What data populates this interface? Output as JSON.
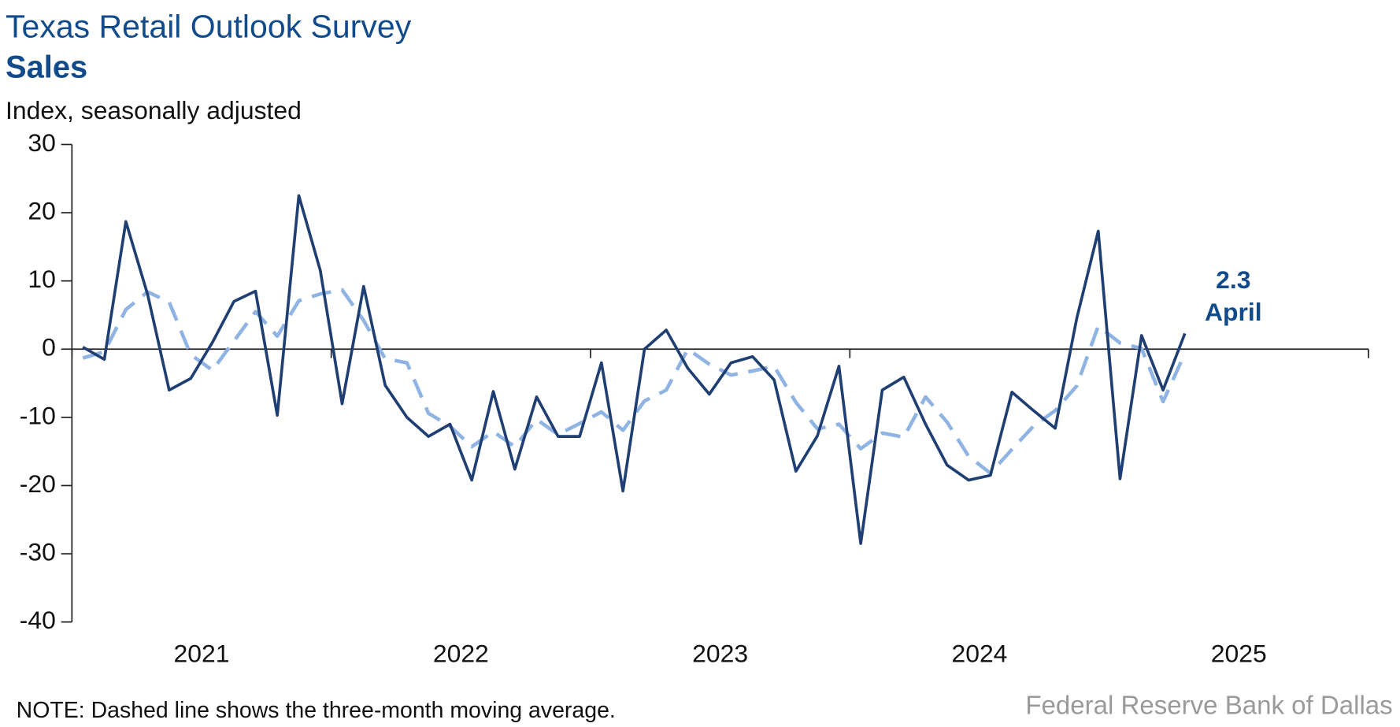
{
  "chart_data": {
    "type": "line",
    "title": "Texas Retail Outlook Survey",
    "subtitle": "Sales",
    "y_axis_label": "Index, seasonally adjusted",
    "note": "NOTE: Dashed line shows the three-month moving average.",
    "source": "Federal Reserve Bank of Dallas",
    "annotation": "April",
    "x": [
      2021.042,
      2021.125,
      2021.208,
      2021.292,
      2021.375,
      2021.458,
      2021.542,
      2021.625,
      2021.708,
      2021.792,
      2021.875,
      2021.958,
      2022.042,
      2022.125,
      2022.208,
      2022.292,
      2022.375,
      2022.458,
      2022.542,
      2022.625,
      2022.708,
      2022.792,
      2022.875,
      2022.958,
      2023.042,
      2023.125,
      2023.208,
      2023.292,
      2023.375,
      2023.458,
      2023.542,
      2023.625,
      2023.708,
      2023.792,
      2023.875,
      2023.958,
      2024.042,
      2024.125,
      2024.208,
      2024.292,
      2024.375,
      2024.458,
      2024.542,
      2024.625,
      2024.708,
      2024.792,
      2024.875,
      2024.958,
      2025.042,
      2025.125,
      2025.208,
      2025.292
    ],
    "series": [
      {
        "color": "#1f3f73",
        "dashed": false,
        "values": [
          0.3,
          -1.5,
          18.7,
          8,
          -6,
          -4.3,
          1,
          7,
          8.5,
          -9.7,
          22.5,
          11.5,
          -8,
          9.2,
          -5.3,
          -10,
          -12.8,
          -11,
          -19.2,
          -6.2,
          -17.6,
          -7,
          -12.8,
          -12.8,
          -2,
          -20.8,
          0,
          2.8,
          -2.8,
          -6.6,
          -2,
          -1.1,
          -4.5,
          -17.9,
          -12.7,
          -2.5,
          -28.5,
          -6,
          -4.1,
          -11,
          -17,
          -19.2,
          -18.5,
          -6.3,
          -9,
          -11.6,
          4.5,
          17.3,
          -19,
          2,
          -6,
          2.3
        ]
      },
      {
        "color": "#8fb4e3",
        "dashed": true,
        "values": [
          -1.3,
          -0.4,
          5.8,
          8.4,
          6.9,
          -0.8,
          -3.1,
          1.2,
          5.5,
          1.9,
          7.1,
          8.1,
          8.7,
          4.2,
          -1.4,
          -2,
          -9.4,
          -11.3,
          -14.3,
          -12.1,
          -14.3,
          -10.3,
          -12.5,
          -10.9,
          -9.2,
          -11.9,
          -7.6,
          -6,
          0,
          -2.2,
          -3.8,
          -3.2,
          -2.5,
          -7.8,
          -11.7,
          -11,
          -14.6,
          -12.3,
          -12.9,
          -7,
          -10.7,
          -15.7,
          -18.2,
          -14.7,
          -11.3,
          -9,
          -5.4,
          3.4,
          0.9,
          0.1,
          -7.7,
          -0.6
        ]
      }
    ],
    "xlim": [
      2021,
      2026
    ],
    "xticks": [
      2021,
      2022,
      2023,
      2024,
      2025,
      2026
    ],
    "xlabels": [
      {
        "value": 2021.5,
        "label": "2021"
      },
      {
        "value": 2022.5,
        "label": "2022"
      },
      {
        "value": 2023.5,
        "label": "2023"
      },
      {
        "value": 2024.5,
        "label": "2024"
      },
      {
        "value": 2025.5,
        "label": "2025"
      }
    ],
    "ylim": [
      -40,
      30
    ],
    "yticks": [
      -40,
      -30,
      -20,
      -10,
      0,
      10,
      20,
      30
    ]
  }
}
